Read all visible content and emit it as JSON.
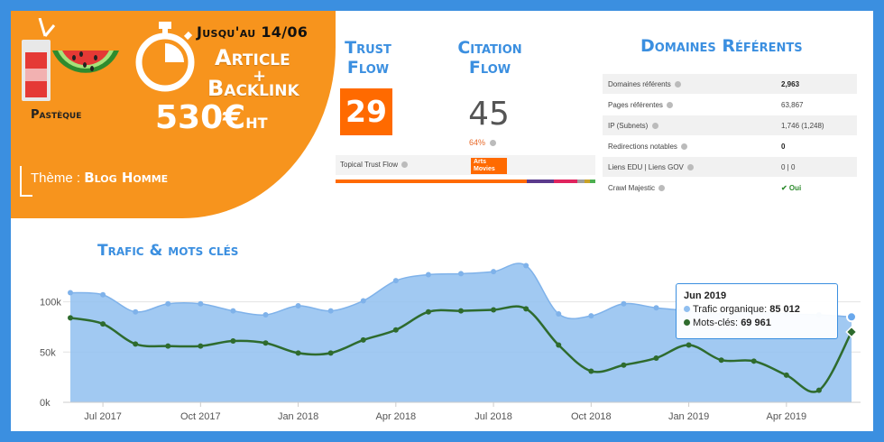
{
  "promo": {
    "date": "Jusqu'au 14/06",
    "line1": "Article",
    "plus": "+",
    "line2": "Backlink",
    "price": "530€",
    "price_unit": "HT",
    "flavor": "Pastèque",
    "theme_label": "Thème : ",
    "theme_value": "Blog Homme",
    "accent": "#f7941d"
  },
  "trust_flow": {
    "title_line1": "Trust",
    "title_line2": "Flow",
    "value": "29",
    "color": "#ff6a00"
  },
  "citation_flow": {
    "title_line1": "Citation",
    "title_line2": "Flow",
    "value": "45",
    "percent": "64%"
  },
  "topical": {
    "label": "Topical Trust Flow",
    "badge_line1": "Arts",
    "badge_line2": "Movies",
    "bar_colors": [
      "#ff6a00",
      "#5b3a8c",
      "#e0245e",
      "#9e9e9e",
      "#c9a227",
      "#4caf50"
    ]
  },
  "domaines": {
    "title": "Domaines Référents",
    "rows": [
      {
        "label": "Domaines référents",
        "value": "2,963",
        "style": "bold"
      },
      {
        "label": "Pages référentes",
        "value": "63,867",
        "style": ""
      },
      {
        "label": "IP (Subnets)",
        "value": "1,746 (1,248)",
        "style": ""
      },
      {
        "label": "Redirections notables",
        "value": "0",
        "style": "bold"
      },
      {
        "label": "Liens EDU | Liens GOV",
        "value": "0 | 0",
        "style": ""
      },
      {
        "label": "Crawl Majestic",
        "value": "✔ Oui",
        "style": "ok"
      }
    ]
  },
  "chart_title": "Trafic & mots clés",
  "chart_data": {
    "type": "area",
    "x": [
      "2017-06",
      "2017-07",
      "2017-08",
      "2017-09",
      "2017-10",
      "2017-11",
      "2017-12",
      "2018-01",
      "2018-02",
      "2018-03",
      "2018-04",
      "2018-05",
      "2018-06",
      "2018-07",
      "2018-08",
      "2018-09",
      "2018-10",
      "2018-11",
      "2018-12",
      "2019-01",
      "2019-02",
      "2019-03",
      "2019-04",
      "2019-05",
      "2019-06"
    ],
    "x_tick_labels": [
      "Jul 2017",
      "Oct 2017",
      "Jan 2018",
      "Apr 2018",
      "Jul 2018",
      "Oct 2018",
      "Jan 2019",
      "Apr 2019"
    ],
    "x_tick_positions": [
      "2017-07",
      "2017-10",
      "2018-01",
      "2018-04",
      "2018-07",
      "2018-10",
      "2019-01",
      "2019-04"
    ],
    "y_tick_labels": [
      "0k",
      "50k",
      "100k"
    ],
    "ylim": [
      0,
      140000
    ],
    "series": [
      {
        "name": "Trafic organique",
        "color": "#90bff0",
        "values": [
          109000,
          107000,
          90000,
          98000,
          98000,
          91000,
          87000,
          96000,
          91000,
          101000,
          121000,
          127000,
          128000,
          130000,
          136000,
          88000,
          86000,
          98000,
          94000,
          91000,
          88000,
          90000,
          88000,
          87000,
          85012
        ]
      },
      {
        "name": "Mots-clés",
        "color": "#2e6b2e",
        "values": [
          84000,
          78000,
          58000,
          56000,
          56000,
          61000,
          59000,
          49000,
          49000,
          62000,
          72000,
          90000,
          91000,
          92000,
          93000,
          57000,
          31000,
          37000,
          44000,
          57000,
          42000,
          41000,
          27000,
          12000,
          69961
        ]
      }
    ],
    "tooltip": {
      "title": "Jun 2019",
      "line1_label": "Trafic organique:",
      "line1_value": "85 012",
      "line2_label": "Mots-clés:",
      "line2_value": "69 961"
    }
  }
}
